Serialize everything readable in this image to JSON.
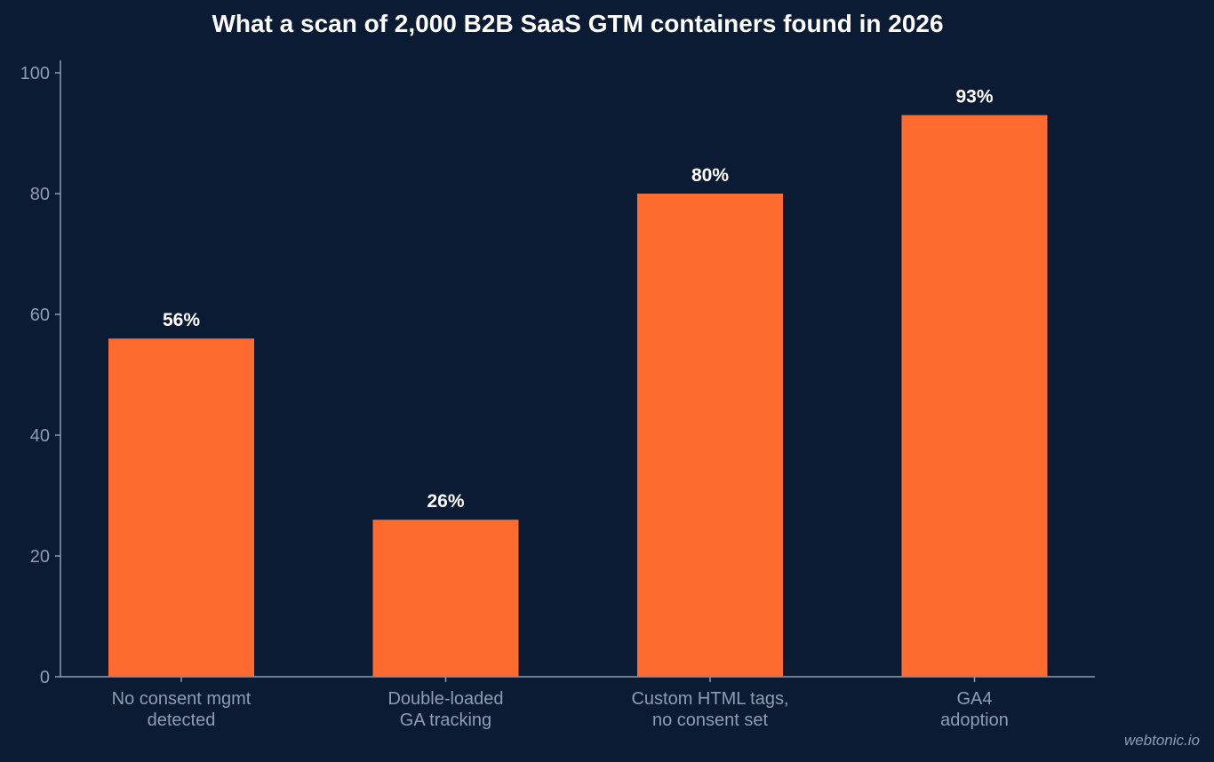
{
  "chart_data": {
    "type": "bar",
    "title": "What a scan of 2,000 B2B SaaS GTM containers found in 2026",
    "xlabel": "",
    "ylabel": "",
    "categories": [
      [
        "No consent mgmt",
        "detected"
      ],
      [
        "Double-loaded",
        "GA tracking"
      ],
      [
        "Custom HTML tags,",
        "no consent set"
      ],
      [
        "GA4",
        "adoption"
      ]
    ],
    "values": [
      56,
      26,
      80,
      93
    ],
    "data_labels": [
      "56%",
      "26%",
      "80%",
      "93%"
    ],
    "ylim": [
      0,
      100
    ],
    "yticks": [
      0,
      20,
      40,
      60,
      80,
      100
    ],
    "grid": false,
    "legend": "none",
    "bar_color": "#ff6b2e",
    "background_color": "#0b1b33",
    "axis_color": "#8f9cb3"
  },
  "watermark": "webtonic.io"
}
